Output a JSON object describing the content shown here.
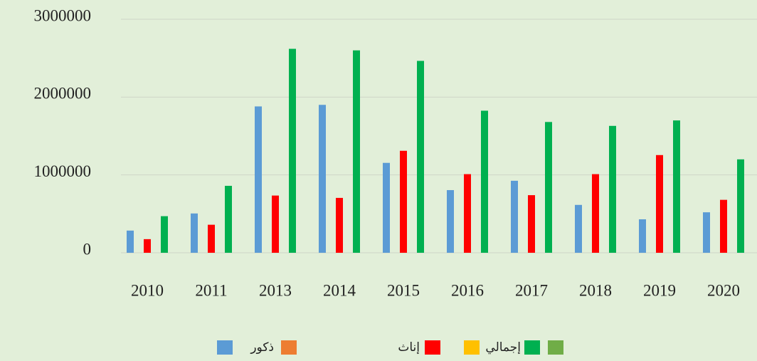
{
  "chart_data": {
    "type": "bar",
    "categories": [
      "2010",
      "2011",
      "2013",
      "2014",
      "2015",
      "2016",
      "2017",
      "2018",
      "2019",
      "2020"
    ],
    "series": [
      {
        "name": "ذكور",
        "color": "#5b9bd5",
        "values": [
          285000,
          505000,
          1880000,
          1900000,
          1155000,
          805000,
          925000,
          615000,
          430000,
          520000
        ]
      },
      {
        "name": "إناث",
        "color": "#ff0000",
        "values": [
          175000,
          360000,
          735000,
          705000,
          1310000,
          1010000,
          740000,
          1010000,
          1255000,
          680000
        ]
      },
      {
        "name": "إجمالي",
        "color": "#00b050",
        "values": [
          470000,
          860000,
          2620000,
          2600000,
          2465000,
          1825000,
          1680000,
          1630000,
          1700000,
          1200000
        ]
      }
    ],
    "ylim": [
      0,
      3000000
    ],
    "yticks": [
      0,
      1000000,
      2000000,
      3000000
    ],
    "grid": true
  }
}
